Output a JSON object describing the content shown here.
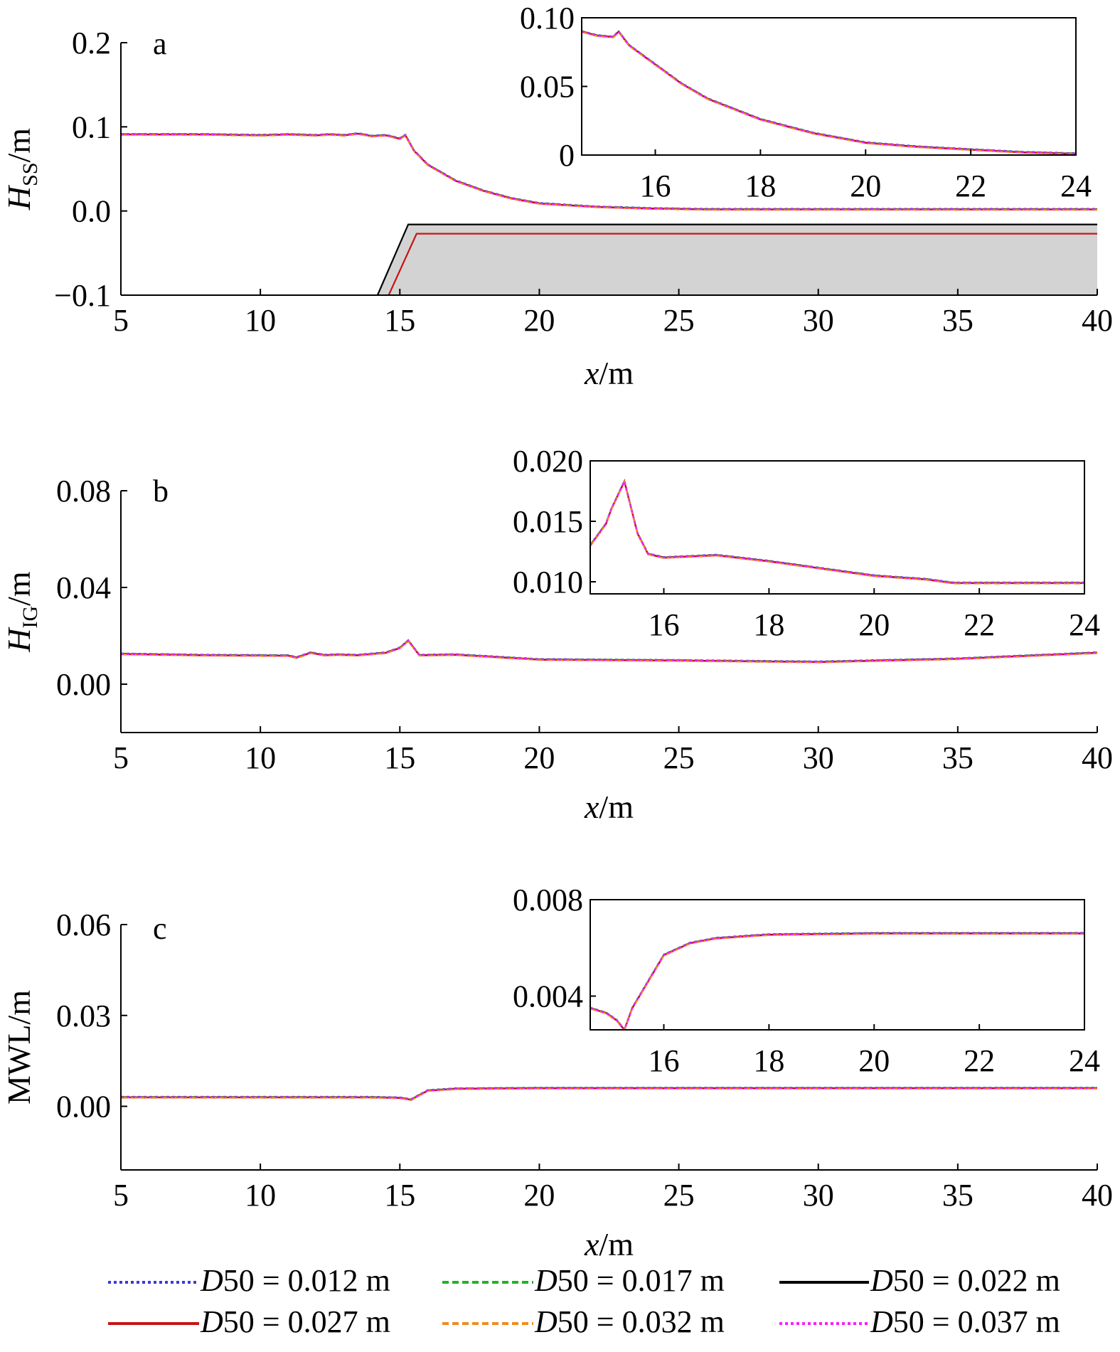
{
  "colors": {
    "s012": "#3a3ad8",
    "s017": "#1fb51f",
    "s022": "#000000",
    "s027": "#c81414",
    "s032": "#f08c1e",
    "s037": "#ff1aff",
    "bed_fill": "#d3d3d3"
  },
  "legend": {
    "items": [
      {
        "key": "s012",
        "label_italic": "D",
        "label_rest": "50 = 0.012 m",
        "dash": "dot"
      },
      {
        "key": "s017",
        "label_italic": "D",
        "label_rest": "50 = 0.017 m",
        "dash": "dash"
      },
      {
        "key": "s022",
        "label_italic": "D",
        "label_rest": "50 = 0.022 m",
        "dash": "solid"
      },
      {
        "key": "s027",
        "label_italic": "D",
        "label_rest": "50 = 0.027 m",
        "dash": "solid"
      },
      {
        "key": "s032",
        "label_italic": "D",
        "label_rest": "50 = 0.032 m",
        "dash": "dash"
      },
      {
        "key": "s037",
        "label_italic": "D",
        "label_rest": "50 = 0.037 m",
        "dash": "dot"
      }
    ]
  },
  "chart_data": [
    {
      "type": "line",
      "panel_label": "a",
      "xlabel_italic": "x",
      "xlabel_rest": "/m",
      "ylabel_main": "H",
      "ylabel_sub": "SS",
      "ylabel_rest": "/m",
      "xlim": [
        5,
        40
      ],
      "ylim": [
        -0.1,
        0.2
      ],
      "xticks": [
        5,
        10,
        15,
        20,
        25,
        30,
        35,
        40
      ],
      "yticks": [
        -0.1,
        0.0,
        0.1,
        0.2
      ],
      "ytick_labels": [
        "−0.1",
        "0.0",
        "0.1",
        "0.2"
      ],
      "x": [
        5,
        8,
        10,
        11,
        12,
        12.5,
        13,
        13.5,
        14,
        14.5,
        15,
        15.2,
        15.5,
        16,
        17,
        18,
        19,
        20,
        22,
        24,
        26,
        30,
        35,
        40
      ],
      "series_values": [
        0.091,
        0.091,
        0.09,
        0.091,
        0.09,
        0.091,
        0.09,
        0.092,
        0.089,
        0.09,
        0.086,
        0.09,
        0.072,
        0.055,
        0.036,
        0.024,
        0.015,
        0.009,
        0.005,
        0.003,
        0.002,
        0.002,
        0.002,
        0.002
      ],
      "bed_black": {
        "x": [
          14.2,
          15.3,
          40
        ],
        "y": [
          -0.1,
          -0.016,
          -0.016
        ]
      },
      "bed_red": {
        "x": [
          14.6,
          15.6,
          40
        ],
        "y": [
          -0.1,
          -0.027,
          -0.027
        ]
      },
      "inset": {
        "xlim": [
          14.6,
          24
        ],
        "ylim": [
          0,
          0.1
        ],
        "xticks": [
          16,
          18,
          20,
          22,
          24
        ],
        "yticks": [
          0,
          0.05,
          0.1
        ],
        "ytick_labels": [
          "0",
          "0.05",
          "0.10"
        ],
        "x": [
          14.6,
          14.9,
          15.2,
          15.3,
          15.5,
          16,
          16.5,
          17,
          18,
          19,
          20,
          21,
          22,
          23,
          24
        ],
        "series_values": [
          0.09,
          0.087,
          0.086,
          0.09,
          0.08,
          0.066,
          0.052,
          0.041,
          0.026,
          0.016,
          0.009,
          0.006,
          0.004,
          0.002,
          0.001
        ]
      }
    },
    {
      "type": "line",
      "panel_label": "b",
      "xlabel_italic": "x",
      "xlabel_rest": "/m",
      "ylabel_main": "H",
      "ylabel_sub": "IG",
      "ylabel_rest": "/m",
      "xlim": [
        5,
        40
      ],
      "ylim": [
        -0.02,
        0.08
      ],
      "xticks": [
        5,
        10,
        15,
        20,
        25,
        30,
        35,
        40
      ],
      "yticks": [
        0.0,
        0.04,
        0.08
      ],
      "ytick_labels": [
        "0.00",
        "0.04",
        "0.08"
      ],
      "x": [
        5,
        8,
        11,
        11.3,
        11.8,
        12.3,
        12.8,
        13.5,
        14.5,
        15,
        15.3,
        15.7,
        17,
        20,
        25,
        30,
        35,
        40
      ],
      "series_values": [
        0.0125,
        0.012,
        0.0118,
        0.011,
        0.013,
        0.012,
        0.0122,
        0.012,
        0.013,
        0.015,
        0.018,
        0.012,
        0.0122,
        0.0102,
        0.0098,
        0.0092,
        0.0105,
        0.013
      ],
      "inset": {
        "xlim": [
          14.6,
          24
        ],
        "ylim": [
          0.009,
          0.02
        ],
        "xticks": [
          16,
          18,
          20,
          22,
          24
        ],
        "yticks": [
          0.01,
          0.015,
          0.02
        ],
        "ytick_labels": [
          "0.010",
          "0.015",
          "0.020"
        ],
        "x": [
          14.6,
          14.9,
          15.0,
          15.25,
          15.5,
          15.7,
          16,
          16.5,
          17,
          18,
          19,
          20,
          21,
          21.5,
          22,
          24
        ],
        "series_values": [
          0.013,
          0.0148,
          0.016,
          0.0183,
          0.014,
          0.0123,
          0.012,
          0.0121,
          0.0122,
          0.0117,
          0.0111,
          0.0105,
          0.0102,
          0.0099,
          0.0099,
          0.0099
        ]
      }
    },
    {
      "type": "line",
      "panel_label": "c",
      "xlabel_italic": "x",
      "xlabel_rest": "/m",
      "ylabel_main": "MWL",
      "ylabel_sub": "",
      "ylabel_rest": "/m",
      "xlim": [
        5,
        40
      ],
      "ylim": [
        -0.021,
        0.06
      ],
      "xticks": [
        5,
        10,
        15,
        20,
        25,
        30,
        35,
        40
      ],
      "yticks": [
        0.0,
        0.03,
        0.06
      ],
      "ytick_labels": [
        "0.00",
        "0.03",
        "0.06"
      ],
      "x": [
        5,
        10,
        14,
        15,
        15.4,
        16,
        17,
        20,
        40
      ],
      "series_values": [
        0.003,
        0.003,
        0.003,
        0.0028,
        0.0022,
        0.0052,
        0.0058,
        0.006,
        0.006
      ],
      "inset": {
        "xlim": [
          14.6,
          24
        ],
        "ylim": [
          0.0026,
          0.008
        ],
        "xticks": [
          16,
          18,
          20,
          22,
          24
        ],
        "yticks": [
          0.004,
          0.008
        ],
        "ytick_labels": [
          "0.004",
          "0.008"
        ],
        "x": [
          14.6,
          14.9,
          15.1,
          15.25,
          15.4,
          15.7,
          16,
          16.5,
          17,
          18,
          20,
          24
        ],
        "series_values": [
          0.0035,
          0.0033,
          0.003,
          0.0026,
          0.0035,
          0.0046,
          0.0057,
          0.0062,
          0.0064,
          0.00655,
          0.0066,
          0.0066
        ]
      }
    }
  ]
}
